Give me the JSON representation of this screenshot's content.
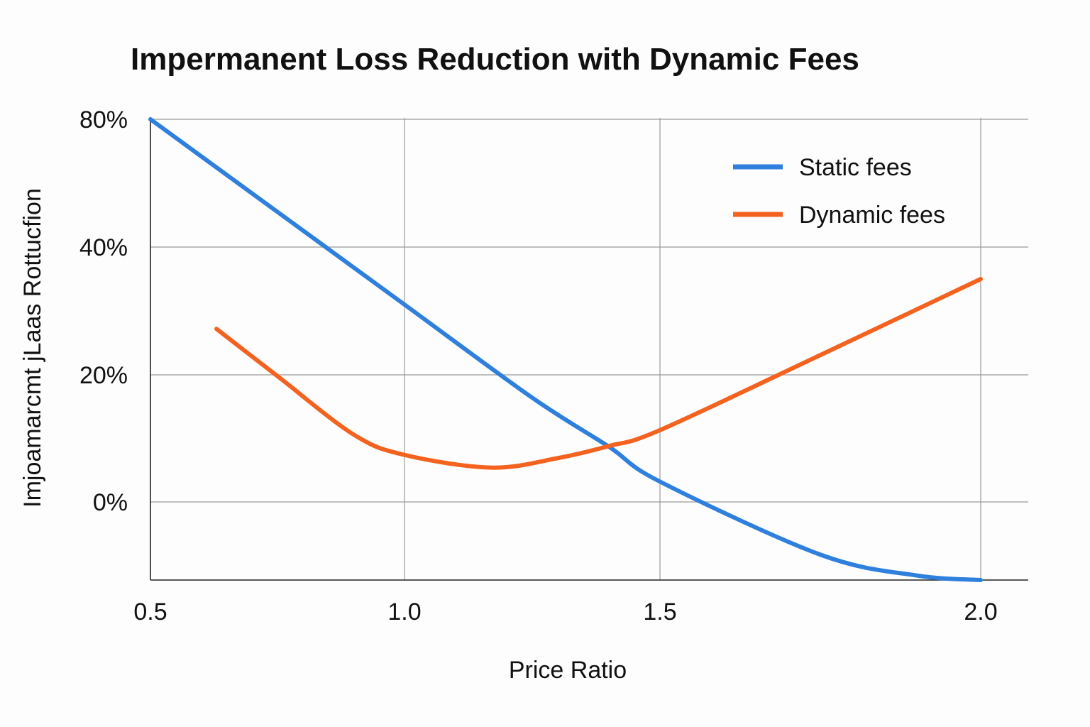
{
  "chart_data": {
    "type": "line",
    "title": "Impermanent Loss Reduction with Dynamic Fees",
    "xlabel": "Price Ratio",
    "ylabel": "Imjoamarcmt jLaas Rottucfion",
    "x_ticks": [
      "0.5",
      "1.0",
      "1.5",
      "2.0"
    ],
    "y_ticks": [
      "80%",
      "40%",
      "20%",
      "0%"
    ],
    "grid": true,
    "legend_position": "top-right",
    "series": [
      {
        "name": "Static fees",
        "color": "#2f80dd",
        "x": [
          0.5,
          0.75,
          1.0,
          1.25,
          1.4,
          1.5,
          1.75,
          1.9,
          2.0
        ],
        "y": [
          80,
          51,
          31,
          16.4,
          8.7,
          3.2,
          -8.1,
          -11.3,
          -12
        ]
      },
      {
        "name": "Dynamic fees",
        "color": "#f4621f",
        "x": [
          0.63,
          0.75,
          0.9,
          1.0,
          1.17,
          1.3,
          1.4,
          1.5,
          1.75,
          2.0
        ],
        "y": [
          27.2,
          19.8,
          10.6,
          7.4,
          5.4,
          6.9,
          8.8,
          11.3,
          23.1,
          35
        ]
      }
    ]
  }
}
